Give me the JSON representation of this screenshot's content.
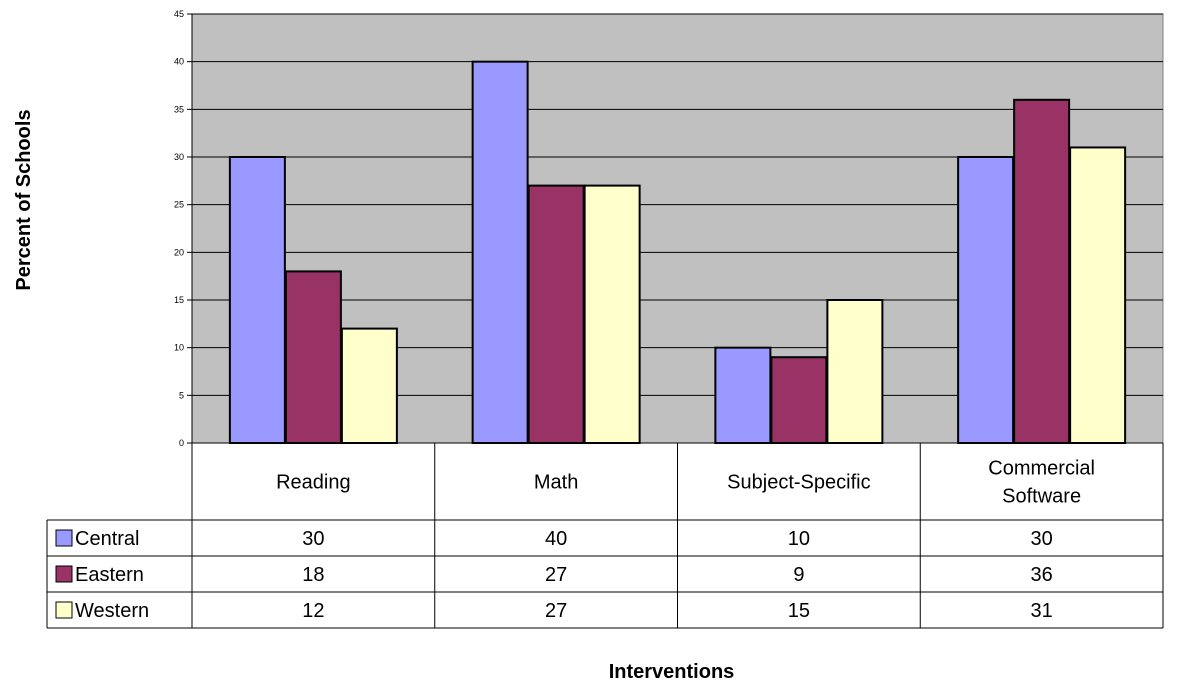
{
  "chart_data": {
    "type": "bar",
    "title": "",
    "xlabel": "Interventions",
    "ylabel": "Percent of Schools",
    "ylim": [
      0,
      45
    ],
    "yticks": [
      "0",
      "5",
      "10",
      "15",
      "20",
      "25",
      "30",
      "35",
      "40",
      "45"
    ],
    "grid": true,
    "plot_background": "#C0C0C0",
    "categories": [
      [
        "Reading"
      ],
      [
        "Math"
      ],
      [
        "Subject-Specific"
      ],
      [
        "Commercial",
        "Software"
      ]
    ],
    "series": [
      {
        "name": "Central",
        "color": "#9999FF",
        "values": [
          30,
          40,
          10,
          30
        ]
      },
      {
        "name": "Eastern",
        "color": "#993366",
        "values": [
          18,
          27,
          9,
          36
        ]
      },
      {
        "name": "Western",
        "color": "#FFFFCC",
        "values": [
          12,
          27,
          15,
          31
        ]
      }
    ],
    "data_table": true
  }
}
